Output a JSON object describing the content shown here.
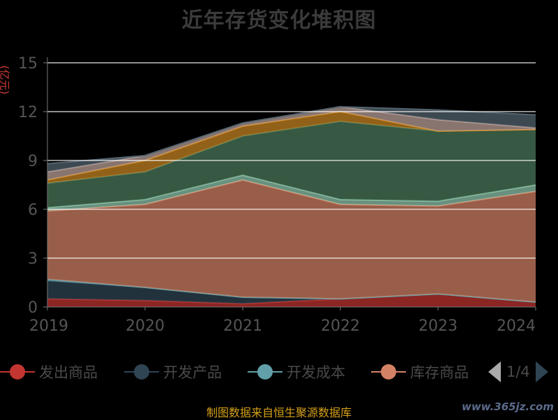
{
  "title": "近年存货变化堆积图",
  "unit": "(亿元)",
  "source": "制图数据来自恒生聚源数据库",
  "watermark": "www.365jz.com",
  "pager": {
    "text": "1/4"
  },
  "chart_data": {
    "type": "area",
    "stacked": true,
    "categories": [
      "2019",
      "2020",
      "2021",
      "2022",
      "2023",
      "2024"
    ],
    "ylim": [
      0,
      15
    ],
    "yticks": [
      "0",
      "3",
      "6",
      "9",
      "12",
      "15"
    ],
    "grid": true,
    "legend_position": "bottom",
    "series": [
      {
        "name": "发出商品",
        "color": "#c23531",
        "values": [
          0.5,
          0.4,
          0.2,
          0.5,
          0.8,
          0.3
        ]
      },
      {
        "name": "开发产品",
        "color": "#2f4554",
        "values": [
          1.1,
          0.8,
          0.4,
          0.0,
          0.0,
          0.0
        ]
      },
      {
        "name": "开发成本",
        "color": "#61a0a8",
        "values": [
          0.1,
          0.0,
          0.0,
          0.0,
          0.0,
          0.0
        ]
      },
      {
        "name": "库存商品",
        "color": "#d48265",
        "values": [
          4.2,
          5.1,
          7.2,
          5.8,
          5.4,
          6.8
        ]
      },
      {
        "name": "",
        "color": "#91c7ae",
        "values": [
          0.2,
          0.3,
          0.3,
          0.3,
          0.3,
          0.4
        ]
      },
      {
        "name": "",
        "color": "#4c7a5c",
        "values": [
          1.5,
          1.7,
          2.4,
          4.8,
          4.3,
          3.4
        ]
      },
      {
        "name": "",
        "color": "#ca8622",
        "values": [
          0.2,
          0.7,
          0.6,
          0.6,
          0.0,
          0.0
        ]
      },
      {
        "name": "",
        "color": "#bda29a",
        "values": [
          0.5,
          0.3,
          0.2,
          0.3,
          0.7,
          0.1
        ]
      },
      {
        "name": "",
        "color": "#546570",
        "values": [
          0.5,
          0.0,
          0.0,
          0.0,
          0.6,
          0.8
        ]
      }
    ]
  }
}
